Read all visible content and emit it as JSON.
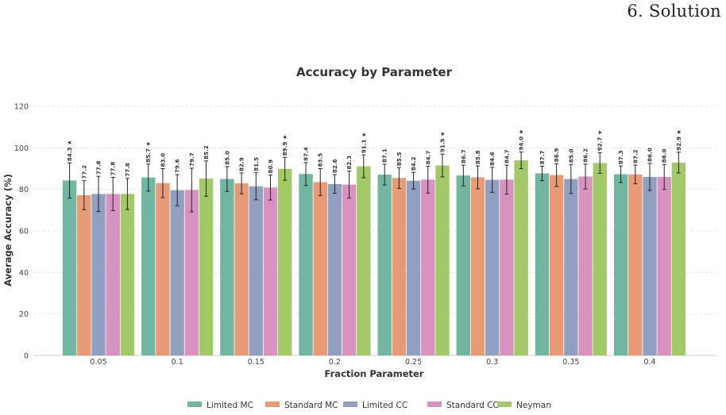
{
  "header": {
    "text": "6. Solution"
  },
  "chart_data": {
    "type": "bar",
    "title": "Accuracy by Parameter",
    "xlabel": "Fraction Parameter",
    "ylabel": "Average Accuracy (%)",
    "ylim": [
      0,
      120
    ],
    "yticks": [
      0,
      20,
      40,
      60,
      80,
      100,
      120
    ],
    "categories": [
      "0.05",
      "0.1",
      "0.15",
      "0.2",
      "0.25",
      "0.3",
      "0.35",
      "0.4"
    ],
    "series": [
      {
        "name": "Limited MC",
        "color": "#72b5a1",
        "values": [
          84.3,
          85.7,
          85.0,
          87.4,
          87.1,
          86.7,
          87.7,
          87.3
        ],
        "errors": [
          8.5,
          6.5,
          6.0,
          5.5,
          5.0,
          5.0,
          3.5,
          4.0
        ],
        "labels": [
          "84.3 ★",
          "85.7 ★",
          "85.0",
          "87.4",
          "87.1",
          "86.7",
          "87.7",
          "87.3"
        ]
      },
      {
        "name": "Standard MC",
        "color": "#e69a76",
        "values": [
          77.2,
          83.0,
          82.9,
          83.5,
          85.5,
          85.8,
          86.9,
          87.2
        ],
        "errors": [
          7.0,
          7.0,
          5.0,
          6.5,
          5.0,
          5.5,
          5.5,
          4.5
        ],
        "labels": [
          "77.2",
          "83.0",
          "82.9",
          "83.5",
          "85.5",
          "85.8",
          "86.9",
          "87.2"
        ]
      },
      {
        "name": "Limited CC",
        "color": "#919fc0",
        "values": [
          77.8,
          79.6,
          81.5,
          82.6,
          84.2,
          84.6,
          85.0,
          86.0
        ],
        "errors": [
          8.5,
          7.5,
          6.5,
          4.5,
          4.0,
          6.0,
          7.0,
          6.5
        ],
        "labels": [
          "77.8",
          "79.6",
          "81.5",
          "82.6",
          "84.2",
          "84.6",
          "85.0",
          "86.0"
        ]
      },
      {
        "name": "Standard CC",
        "color": "#d792bf",
        "values": [
          77.8,
          79.7,
          80.9,
          82.3,
          84.7,
          84.7,
          86.2,
          86.0
        ],
        "errors": [
          8.0,
          10.5,
          6.0,
          6.5,
          6.5,
          7.0,
          6.0,
          6.0
        ],
        "labels": [
          "77.8",
          "79.7",
          "80.9",
          "82.3",
          "84.7",
          "84.7",
          "86.2",
          "86.0"
        ]
      },
      {
        "name": "Neyman",
        "color": "#a2c867",
        "values": [
          77.8,
          85.2,
          89.9,
          91.1,
          91.5,
          94.0,
          92.7,
          92.9
        ],
        "errors": [
          7.5,
          8.5,
          5.5,
          5.5,
          5.5,
          4.0,
          5.0,
          5.0
        ],
        "labels": [
          "77.8",
          "85.2",
          "89.9 ★",
          "91.1 ★",
          "91.5 ★",
          "94.0 ★",
          "92.7 ★",
          "92.9 ★"
        ]
      }
    ],
    "grid": true,
    "legend": "bottom-center"
  }
}
